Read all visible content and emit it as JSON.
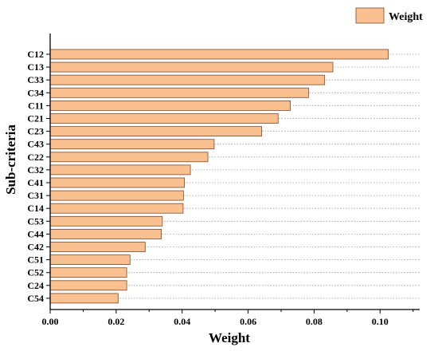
{
  "chart_data": {
    "type": "bar",
    "orientation": "horizontal",
    "categories": [
      "C12",
      "C13",
      "C33",
      "C34",
      "C11",
      "C21",
      "C23",
      "C43",
      "C22",
      "C32",
      "C41",
      "C31",
      "C14",
      "C53",
      "C44",
      "C42",
      "C51",
      "C52",
      "C24",
      "C54"
    ],
    "series": [
      {
        "name": "Weight",
        "values": [
          0.1025,
          0.0857,
          0.0832,
          0.0783,
          0.0728,
          0.0691,
          0.0641,
          0.0497,
          0.0478,
          0.0425,
          0.0407,
          0.0404,
          0.0403,
          0.034,
          0.0337,
          0.0288,
          0.0242,
          0.0232,
          0.0232,
          0.0206
        ],
        "color": "#FAC090"
      }
    ],
    "xlabel": "Weight",
    "ylabel": "Sub-criteria",
    "xlim": [
      0,
      0.112
    ],
    "xticks": [
      "0.00",
      "0.02",
      "0.04",
      "0.06",
      "0.08",
      "0.10"
    ],
    "xtick_values": [
      0,
      0.02,
      0.04,
      0.06,
      0.08,
      0.1
    ],
    "grid": "horizontal dotted",
    "legend_position": "top-right",
    "bar_edge_color": "#7a4a2a"
  }
}
